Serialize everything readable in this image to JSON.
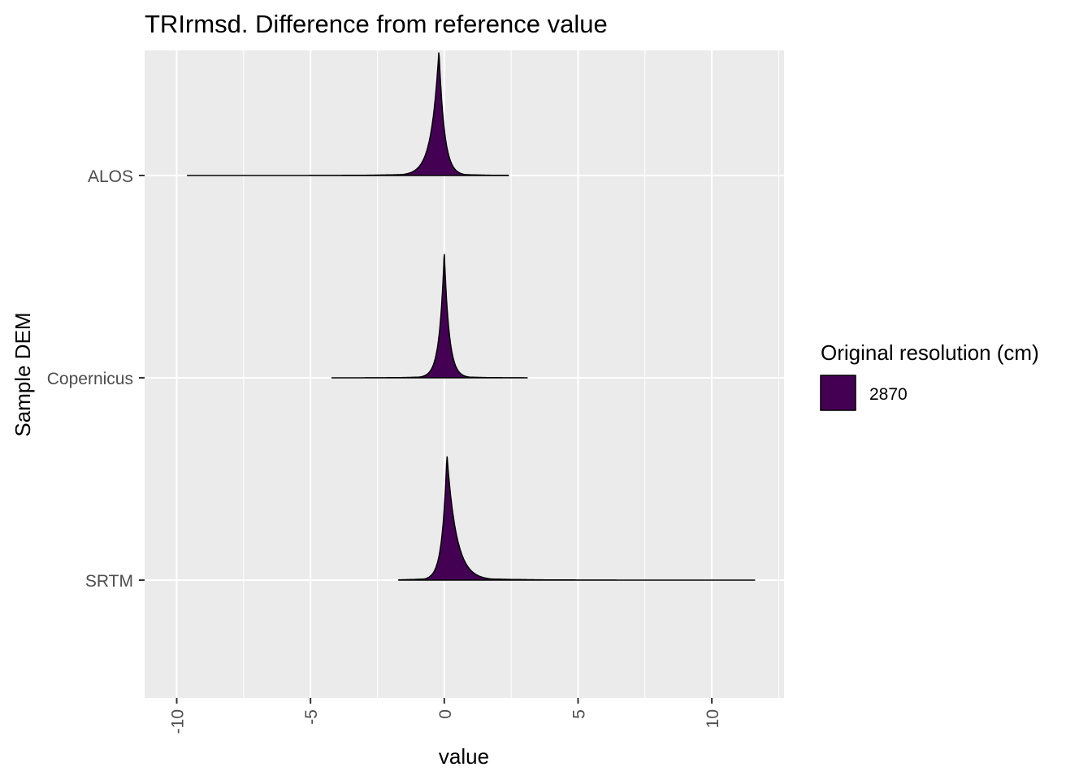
{
  "chart_data": {
    "type": "ridgeline-density",
    "title": "TRIrmsd. Difference from reference value",
    "xlabel": "value",
    "ylabel": "Sample DEM",
    "xlim": [
      -11.2,
      12.7
    ],
    "x_ticks": [
      -10,
      -5,
      0,
      5,
      10
    ],
    "x_tick_labels": [
      "-10",
      "-5",
      "0",
      "5",
      "10"
    ],
    "categories": [
      "ALOS",
      "Copernicus",
      "SRTM"
    ],
    "series": [
      {
        "name": "ALOS",
        "peak": -0.2,
        "min": -9.6,
        "max": 2.4,
        "left_width": 0.28,
        "right_width": 0.2,
        "skirt": 0.025
      },
      {
        "name": "Copernicus",
        "peak": 0.0,
        "min": -4.2,
        "max": 3.1,
        "left_width": 0.18,
        "right_width": 0.18,
        "skirt": 0.02
      },
      {
        "name": "SRTM",
        "peak": 0.1,
        "min": -1.7,
        "max": 11.6,
        "left_width": 0.18,
        "right_width": 0.35,
        "skirt": 0.03
      }
    ],
    "fill_color": "#440154",
    "legend": {
      "title": "Original resolution (cm)",
      "items": [
        {
          "label": "2870",
          "color": "#440154"
        }
      ],
      "position": "right"
    }
  }
}
